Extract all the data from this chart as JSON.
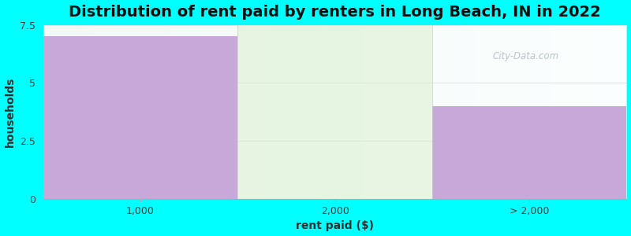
{
  "title": "Distribution of rent paid by renters in Long Beach, IN in 2022",
  "xlabel": "rent paid ($)",
  "ylabel": "households",
  "categories": [
    "1,000",
    "2,000",
    "> 2,000"
  ],
  "values": [
    7.0,
    7.5,
    4.0
  ],
  "bar_colors": [
    "#c8a8d8",
    "#daf0d0",
    "#c8a8d8"
  ],
  "bar_alphas": [
    1.0,
    0.55,
    1.0
  ],
  "ylim": [
    0,
    7.5
  ],
  "yticks": [
    0,
    2.5,
    5.0,
    7.5
  ],
  "background_color": "#00ffff",
  "plot_bg_color": "#f8feff",
  "title_fontsize": 14,
  "label_fontsize": 10,
  "tick_fontsize": 9,
  "watermark": "City-Data.com"
}
